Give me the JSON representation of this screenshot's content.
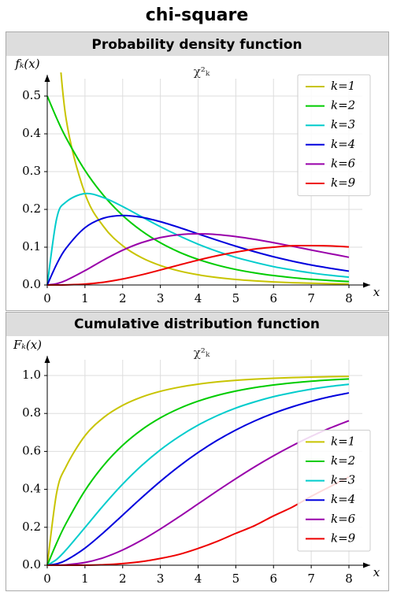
{
  "title": "chi-square",
  "chart_data": [
    {
      "type": "line",
      "title": "Probability density function",
      "y_label": "fₖ(x)",
      "x_label": "x",
      "annotation": "χ²ₖ",
      "x": [
        0,
        0.25,
        0.5,
        1,
        1.5,
        2,
        2.5,
        3,
        3.5,
        4,
        4.5,
        5,
        5.5,
        6,
        6.5,
        7,
        7.5,
        8
      ],
      "xlim": [
        0,
        8
      ],
      "xticks": [
        0,
        1,
        2,
        3,
        4,
        5,
        6,
        7,
        8
      ],
      "ylim": [
        0,
        0.5
      ],
      "yticks": [
        {
          "value": 0,
          "label": "0.0"
        },
        0.1,
        0.2,
        0.3,
        0.4,
        0.5
      ],
      "grid": true,
      "legend": "upper right",
      "series": [
        {
          "name": "k=1",
          "color": "#c8c400",
          "values": [
            null,
            0.704,
            0.4394,
            0.242,
            0.1539,
            0.1038,
            0.0723,
            0.0514,
            0.0371,
            0.027,
            0.0198,
            0.0146,
            0.0109,
            0.0081,
            0.0061,
            0.0046,
            0.0034,
            0.0026
          ]
        },
        {
          "name": "k=2",
          "color": "#00cc00",
          "values": [
            0.5,
            0.4412,
            0.3894,
            0.3033,
            0.2362,
            0.1839,
            0.1433,
            0.1116,
            0.0869,
            0.0677,
            0.0527,
            0.041,
            0.032,
            0.0249,
            0.0194,
            0.0151,
            0.0118,
            0.0092
          ]
        },
        {
          "name": "k=3",
          "color": "#00cccc",
          "values": [
            0,
            0.176,
            0.2197,
            0.242,
            0.2309,
            0.2076,
            0.1807,
            0.1542,
            0.1299,
            0.108,
            0.0891,
            0.073,
            0.06,
            0.0486,
            0.0397,
            0.0319,
            0.0257,
            0.0207
          ]
        },
        {
          "name": "k=4",
          "color": "#0000dd",
          "values": [
            0,
            0.0551,
            0.0974,
            0.1516,
            0.1771,
            0.1839,
            0.1791,
            0.1674,
            0.1521,
            0.1353,
            0.1186,
            0.1026,
            0.088,
            0.0747,
            0.0631,
            0.0528,
            0.0443,
            0.0366
          ]
        },
        {
          "name": "k=6",
          "color": "#9900aa",
          "values": [
            0,
            0.0034,
            0.0122,
            0.0379,
            0.0664,
            0.092,
            0.112,
            0.1255,
            0.1331,
            0.1353,
            0.1334,
            0.1282,
            0.1209,
            0.112,
            0.1025,
            0.0925,
            0.0829,
            0.0733
          ]
        },
        {
          "name": "k=9",
          "color": "#ee0000",
          "values": [
            0,
            0,
            0.0003,
            0.0023,
            0.0074,
            0.0158,
            0.0269,
            0.0397,
            0.053,
            0.0658,
            0.0773,
            0.0869,
            0.0951,
            0.1,
            0.1038,
            0.1041,
            0.1033,
            0.1008
          ]
        }
      ]
    },
    {
      "type": "line",
      "title": "Cumulative distribution function",
      "y_label": "Fₖ(x)",
      "x_label": "x",
      "annotation": "χ²ₖ",
      "x": [
        0,
        0.25,
        0.5,
        1,
        1.5,
        2,
        2.5,
        3,
        3.5,
        4,
        4.5,
        5,
        5.5,
        6,
        6.5,
        7,
        7.5,
        8
      ],
      "xlim": [
        0,
        8
      ],
      "xticks": [
        0,
        1,
        2,
        3,
        4,
        5,
        6,
        7,
        8
      ],
      "ylim": [
        0,
        1
      ],
      "yticks": [
        {
          "value": 0,
          "label": "0.0"
        },
        0.2,
        0.4,
        0.6,
        0.8,
        {
          "value": 1,
          "label": "1.0"
        }
      ],
      "grid": true,
      "legend": "lower right",
      "series": [
        {
          "name": "k=1",
          "color": "#c8c400",
          "values": [
            0,
            0.3829,
            0.5205,
            0.6827,
            0.7793,
            0.8427,
            0.8862,
            0.9167,
            0.9386,
            0.9545,
            0.9661,
            0.9747,
            0.981,
            0.9857,
            0.9892,
            0.9918,
            0.9938,
            0.9953
          ]
        },
        {
          "name": "k=2",
          "color": "#00cc00",
          "values": [
            0,
            0.1175,
            0.2212,
            0.3935,
            0.5276,
            0.6321,
            0.7135,
            0.7769,
            0.8262,
            0.8647,
            0.8946,
            0.9179,
            0.9361,
            0.9502,
            0.9612,
            0.9698,
            0.9765,
            0.9817
          ]
        },
        {
          "name": "k=3",
          "color": "#00cccc",
          "values": [
            0,
            0.0309,
            0.0811,
            0.1987,
            0.3175,
            0.4275,
            0.5248,
            0.6083,
            0.6788,
            0.7385,
            0.7879,
            0.8287,
            0.861,
            0.8885,
            0.9098,
            0.9281,
            0.9425,
            0.954
          ]
        },
        {
          "name": "k=4",
          "color": "#0000dd",
          "values": [
            0,
            0.0072,
            0.0265,
            0.0902,
            0.1733,
            0.2642,
            0.3554,
            0.4422,
            0.5221,
            0.594,
            0.6575,
            0.7127,
            0.7603,
            0.8009,
            0.8351,
            0.8641,
            0.8884,
            0.9084
          ]
        },
        {
          "name": "k=6",
          "color": "#9900aa",
          "values": [
            0,
            0.0003,
            0.0022,
            0.0144,
            0.0404,
            0.0803,
            0.1315,
            0.1912,
            0.2559,
            0.3233,
            0.3907,
            0.4562,
            0.5188,
            0.5768,
            0.6302,
            0.6791,
            0.7231,
            0.7619
          ]
        },
        {
          "name": "k=9",
          "color": "#ee0000",
          "values": [
            0,
            0,
            0,
            0.0003,
            0.0027,
            0.0088,
            0.019,
            0.0357,
            0.0574,
            0.0885,
            0.1253,
            0.1681,
            0.2088,
            0.2601,
            0.3066,
            0.3629,
            0.4145,
            0.4659
          ]
        }
      ]
    }
  ]
}
